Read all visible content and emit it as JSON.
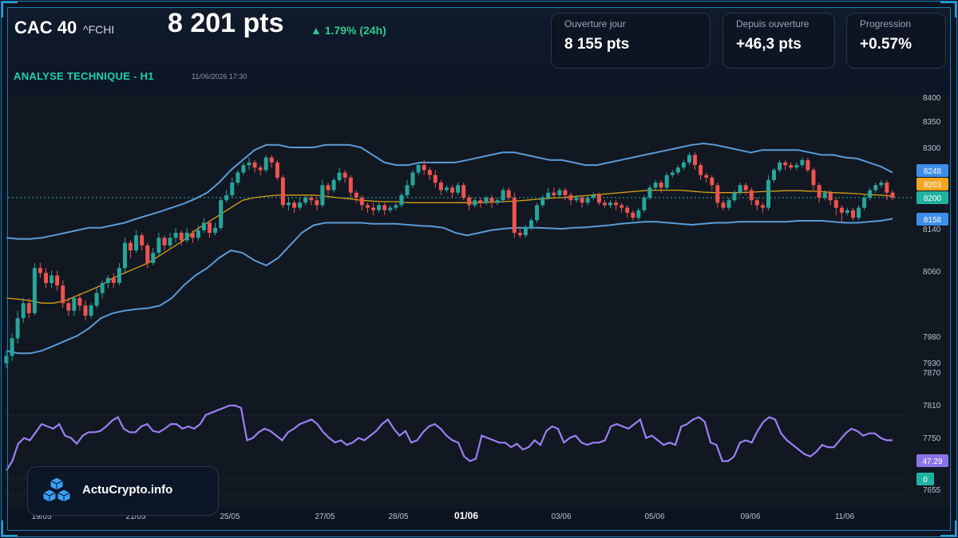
{
  "header": {
    "symbol": "CAC 40",
    "ticker": "^FCHI",
    "price": "8 201 pts",
    "change": "▲ 1.79% (24h)",
    "analysis_title": "ANALYSE TECHNIQUE - H1",
    "timestamp": "11/06/2026 17:30"
  },
  "stats": [
    {
      "label": "Ouverture jour",
      "value": "8 155 pts"
    },
    {
      "label": "Depuis ouverture",
      "value": "+46,3 pts"
    },
    {
      "label": "Progression",
      "value": "+0.57%"
    }
  ],
  "branding": {
    "name": "ActuCrypto.info"
  },
  "colors": {
    "up": "#26a69a",
    "down": "#ef5350",
    "bollinger": "#5b9bd5",
    "ma": "#d4a017",
    "rsi": "#9b7ff0",
    "price_badge": "#20b2a0",
    "upper_badge": "#3d8ee8",
    "ma_badge": "#f5a623",
    "rsi_badge": "#8b74e6",
    "zero_badge": "#20b2a0"
  },
  "chart_data": {
    "type": "candlestick",
    "price_axis": {
      "ticks": [
        "8400",
        "8350",
        "8300",
        "8140",
        "8060",
        "7980",
        "7930",
        "7870",
        "7810",
        "7750",
        "7655"
      ]
    },
    "x_ticks": [
      "19/05",
      "21/05",
      "25/05",
      "27/05",
      "28/05",
      "01/06",
      "03/06",
      "05/06",
      "09/06",
      "11/06"
    ],
    "bold_x_tick": "01/06",
    "badges": {
      "upper": "8248",
      "ma": "8203",
      "price": "8200",
      "lower": "8158",
      "rsi": "47.29",
      "zero": "0"
    },
    "candles": [
      [
        7870,
        7885,
        7860,
        7895
      ],
      [
        7885,
        7920,
        7875,
        7930
      ],
      [
        7920,
        7960,
        7910,
        7975
      ],
      [
        7960,
        7990,
        7950,
        8000
      ],
      [
        7990,
        7970,
        7960,
        8000
      ],
      [
        7970,
        8060,
        7965,
        8070
      ],
      [
        8060,
        8050,
        8040,
        8070
      ],
      [
        8050,
        8030,
        8020,
        8060
      ],
      [
        8030,
        8045,
        8020,
        8055
      ],
      [
        8045,
        8025,
        8015,
        8055
      ],
      [
        8025,
        7990,
        7980,
        8035
      ],
      [
        7990,
        7975,
        7965,
        8000
      ],
      [
        7975,
        8000,
        7965,
        8005
      ],
      [
        8000,
        7985,
        7975,
        8010
      ],
      [
        7985,
        7965,
        7955,
        7995
      ],
      [
        7965,
        7985,
        7960,
        7990
      ],
      [
        7985,
        8010,
        7980,
        8020
      ],
      [
        8010,
        8030,
        8000,
        8035
      ],
      [
        8030,
        8040,
        8020,
        8045
      ],
      [
        8040,
        8030,
        8020,
        8050
      ],
      [
        8030,
        8060,
        8025,
        8070
      ],
      [
        8060,
        8110,
        8050,
        8120
      ],
      [
        8110,
        8095,
        8080,
        8115
      ],
      [
        8095,
        8125,
        8090,
        8135
      ],
      [
        8125,
        8105,
        8095,
        8130
      ],
      [
        8105,
        8070,
        8060,
        8110
      ],
      [
        8070,
        8090,
        8065,
        8100
      ],
      [
        8090,
        8120,
        8085,
        8130
      ],
      [
        8120,
        8105,
        8095,
        8125
      ],
      [
        8105,
        8120,
        8100,
        8130
      ],
      [
        8120,
        8130,
        8110,
        8140
      ],
      [
        8130,
        8115,
        8105,
        8135
      ],
      [
        8115,
        8130,
        8110,
        8140
      ],
      [
        8130,
        8120,
        8110,
        8135
      ],
      [
        8120,
        8135,
        8115,
        8145
      ],
      [
        8135,
        8150,
        8130,
        8160
      ],
      [
        8150,
        8130,
        8120,
        8155
      ],
      [
        8130,
        8140,
        8125,
        8150
      ],
      [
        8140,
        8195,
        8135,
        8200
      ],
      [
        8195,
        8205,
        8190,
        8215
      ],
      [
        8205,
        8230,
        8200,
        8240
      ],
      [
        8230,
        8250,
        8225,
        8255
      ],
      [
        8250,
        8265,
        8245,
        8270
      ],
      [
        8265,
        8270,
        8255,
        8280
      ],
      [
        8270,
        8260,
        8250,
        8275
      ],
      [
        8260,
        8255,
        8245,
        8265
      ],
      [
        8255,
        8280,
        8250,
        8285
      ],
      [
        8280,
        8270,
        8260,
        8285
      ],
      [
        8270,
        8240,
        8235,
        8275
      ],
      [
        8240,
        8185,
        8180,
        8245
      ],
      [
        8185,
        8190,
        8175,
        8200
      ],
      [
        8190,
        8180,
        8170,
        8195
      ],
      [
        8180,
        8190,
        8175,
        8200
      ],
      [
        8190,
        8200,
        8185,
        8205
      ],
      [
        8200,
        8195,
        8185,
        8205
      ],
      [
        8195,
        8185,
        8175,
        8200
      ],
      [
        8185,
        8225,
        8180,
        8235
      ],
      [
        8225,
        8215,
        8205,
        8230
      ],
      [
        8215,
        8235,
        8210,
        8240
      ],
      [
        8235,
        8250,
        8230,
        8260
      ],
      [
        8250,
        8240,
        8230,
        8255
      ],
      [
        8240,
        8210,
        8200,
        8245
      ],
      [
        8210,
        8200,
        8190,
        8215
      ],
      [
        8200,
        8185,
        8175,
        8205
      ],
      [
        8185,
        8180,
        8170,
        8190
      ],
      [
        8180,
        8175,
        8165,
        8190
      ],
      [
        8175,
        8185,
        8170,
        8190
      ],
      [
        8185,
        8175,
        8165,
        8190
      ],
      [
        8175,
        8180,
        8170,
        8185
      ],
      [
        8180,
        8185,
        8175,
        8190
      ],
      [
        8185,
        8205,
        8180,
        8210
      ],
      [
        8205,
        8225,
        8200,
        8235
      ],
      [
        8225,
        8250,
        8220,
        8255
      ],
      [
        8250,
        8265,
        8245,
        8270
      ],
      [
        8265,
        8255,
        8245,
        8275
      ],
      [
        8255,
        8245,
        8235,
        8260
      ],
      [
        8245,
        8230,
        8220,
        8255
      ],
      [
        8230,
        8215,
        8205,
        8235
      ],
      [
        8215,
        8220,
        8210,
        8225
      ],
      [
        8220,
        8210,
        8200,
        8225
      ],
      [
        8210,
        8225,
        8205,
        8230
      ],
      [
        8225,
        8200,
        8195,
        8230
      ],
      [
        8200,
        8185,
        8175,
        8205
      ],
      [
        8185,
        8195,
        8180,
        8200
      ],
      [
        8195,
        8190,
        8180,
        8200
      ],
      [
        8190,
        8200,
        8185,
        8205
      ],
      [
        8200,
        8190,
        8180,
        8205
      ],
      [
        8190,
        8195,
        8185,
        8200
      ],
      [
        8195,
        8215,
        8190,
        8220
      ],
      [
        8215,
        8200,
        8195,
        8220
      ],
      [
        8200,
        8130,
        8120,
        8210
      ],
      [
        8130,
        8125,
        8120,
        8140
      ],
      [
        8125,
        8140,
        8120,
        8145
      ],
      [
        8140,
        8155,
        8135,
        8160
      ],
      [
        8155,
        8185,
        8150,
        8190
      ],
      [
        8185,
        8200,
        8180,
        8205
      ],
      [
        8200,
        8210,
        8195,
        8220
      ],
      [
        8210,
        8205,
        8200,
        8220
      ],
      [
        8205,
        8215,
        8200,
        8220
      ],
      [
        8215,
        8205,
        8195,
        8220
      ],
      [
        8205,
        8195,
        8185,
        8210
      ],
      [
        8195,
        8200,
        8190,
        8205
      ],
      [
        8200,
        8190,
        8180,
        8205
      ],
      [
        8190,
        8200,
        8185,
        8205
      ],
      [
        8200,
        8205,
        8195,
        8210
      ],
      [
        8205,
        8190,
        8185,
        8210
      ],
      [
        8190,
        8185,
        8180,
        8195
      ],
      [
        8185,
        8190,
        8180,
        8195
      ],
      [
        8190,
        8185,
        8175,
        8195
      ],
      [
        8185,
        8180,
        8170,
        8190
      ],
      [
        8180,
        8170,
        8160,
        8185
      ],
      [
        8170,
        8160,
        8155,
        8175
      ],
      [
        8160,
        8175,
        8155,
        8180
      ],
      [
        8175,
        8200,
        8170,
        8205
      ],
      [
        8200,
        8220,
        8195,
        8225
      ],
      [
        8220,
        8230,
        8215,
        8235
      ],
      [
        8230,
        8220,
        8210,
        8235
      ],
      [
        8220,
        8245,
        8215,
        8250
      ],
      [
        8245,
        8250,
        8240,
        8255
      ],
      [
        8250,
        8260,
        8245,
        8265
      ],
      [
        8260,
        8270,
        8255,
        8275
      ],
      [
        8270,
        8285,
        8265,
        8290
      ],
      [
        8285,
        8265,
        8255,
        8290
      ],
      [
        8265,
        8245,
        8235,
        8270
      ],
      [
        8245,
        8240,
        8230,
        8250
      ],
      [
        8240,
        8225,
        8215,
        8245
      ],
      [
        8225,
        8190,
        8180,
        8230
      ],
      [
        8190,
        8180,
        8175,
        8195
      ],
      [
        8180,
        8195,
        8175,
        8200
      ],
      [
        8195,
        8210,
        8190,
        8215
      ],
      [
        8210,
        8225,
        8205,
        8230
      ],
      [
        8225,
        8215,
        8205,
        8230
      ],
      [
        8215,
        8195,
        8185,
        8220
      ],
      [
        8195,
        8185,
        8175,
        8200
      ],
      [
        8185,
        8180,
        8170,
        8190
      ],
      [
        8180,
        8235,
        8175,
        8245
      ],
      [
        8235,
        8255,
        8230,
        8260
      ],
      [
        8255,
        8270,
        8250,
        8275
      ],
      [
        8270,
        8265,
        8255,
        8275
      ],
      [
        8265,
        8260,
        8255,
        8270
      ],
      [
        8260,
        8265,
        8255,
        8270
      ],
      [
        8265,
        8275,
        8260,
        8280
      ],
      [
        8275,
        8255,
        8250,
        8280
      ],
      [
        8255,
        8225,
        8215,
        8260
      ],
      [
        8225,
        8200,
        8190,
        8230
      ],
      [
        8200,
        8210,
        8195,
        8215
      ],
      [
        8210,
        8195,
        8185,
        8215
      ],
      [
        8195,
        8180,
        8165,
        8200
      ],
      [
        8180,
        8170,
        8150,
        8185
      ],
      [
        8170,
        8175,
        8165,
        8180
      ],
      [
        8175,
        8160,
        8155,
        8180
      ],
      [
        8160,
        8180,
        8155,
        8185
      ],
      [
        8180,
        8200,
        8175,
        8205
      ],
      [
        8200,
        8215,
        8195,
        8220
      ],
      [
        8215,
        8225,
        8210,
        8230
      ],
      [
        8225,
        8230,
        8220,
        8235
      ],
      [
        8230,
        8210,
        8195,
        8235
      ],
      [
        8210,
        8200,
        8195,
        8215
      ]
    ],
    "bollinger_upper": [
      8120,
      8118,
      8118,
      8120,
      8125,
      8130,
      8135,
      8140,
      8140,
      8145,
      8150,
      8158,
      8165,
      8172,
      8180,
      8188,
      8198,
      8210,
      8230,
      8255,
      8275,
      8295,
      8305,
      8305,
      8300,
      8300,
      8300,
      8305,
      8305,
      8305,
      8300,
      8285,
      8270,
      8265,
      8265,
      8270,
      8270,
      8270,
      8270,
      8275,
      8280,
      8285,
      8290,
      8290,
      8285,
      8280,
      8275,
      8275,
      8270,
      8265,
      8265,
      8270,
      8275,
      8280,
      8285,
      8290,
      8295,
      8300,
      8305,
      8308,
      8305,
      8300,
      8295,
      8290,
      8295,
      8295,
      8295,
      8295,
      8290,
      8285,
      8285,
      8280,
      8278,
      8270,
      8262,
      8250
    ],
    "bollinger_lower": [
      7895,
      7890,
      7890,
      7895,
      7905,
      7915,
      7925,
      7940,
      7960,
      7970,
      7975,
      7978,
      7980,
      7985,
      8000,
      8025,
      8045,
      8060,
      8080,
      8095,
      8090,
      8075,
      8065,
      8080,
      8105,
      8130,
      8145,
      8150,
      8150,
      8150,
      8150,
      8148,
      8148,
      8148,
      8146,
      8144,
      8143,
      8140,
      8130,
      8125,
      8130,
      8135,
      8138,
      8140,
      8140,
      8140,
      8139,
      8138,
      8140,
      8141,
      8143,
      8145,
      8148,
      8150,
      8152,
      8152,
      8150,
      8148,
      8146,
      8148,
      8150,
      8150,
      8152,
      8152,
      8152,
      8152,
      8152,
      8154,
      8154,
      8154,
      8152,
      8150,
      8150,
      8152,
      8154,
      8158
    ],
    "ma": [
      8000,
      7998,
      7995,
      7990,
      7990,
      7995,
      8005,
      8015,
      8025,
      8040,
      8050,
      8060,
      8070,
      8085,
      8100,
      8115,
      8135,
      8150,
      8165,
      8180,
      8195,
      8200,
      8203,
      8205,
      8205,
      8205,
      8205,
      8203,
      8200,
      8198,
      8195,
      8193,
      8192,
      8192,
      8190,
      8190,
      8190,
      8190,
      8190,
      8190,
      8190,
      8191,
      8192,
      8193,
      8195,
      8197,
      8199,
      8200,
      8202,
      8204,
      8206,
      8208,
      8210,
      8212,
      8214,
      8215,
      8215,
      8215,
      8213,
      8211,
      8210,
      8210,
      8210,
      8211,
      8212,
      8213,
      8214,
      8214,
      8213,
      8212,
      8210,
      8209,
      8208,
      8206,
      8205,
      8203
    ],
    "rsi": [
      22,
      30,
      45,
      50,
      48,
      55,
      62,
      60,
      58,
      62,
      52,
      50,
      45,
      52,
      55,
      55,
      56,
      60,
      65,
      68,
      58,
      55,
      55,
      60,
      62,
      56,
      55,
      58,
      62,
      62,
      58,
      60,
      58,
      62,
      70,
      72,
      74,
      76,
      78,
      78,
      76,
      48,
      50,
      55,
      58,
      56,
      52,
      48,
      55,
      58,
      62,
      64,
      66,
      62,
      55,
      50,
      46,
      48,
      44,
      46,
      50,
      48,
      52,
      56,
      62,
      66,
      58,
      52,
      56,
      46,
      48,
      55,
      60,
      62,
      58,
      52,
      48,
      46,
      34,
      30,
      32,
      52,
      50,
      48,
      46,
      46,
      42,
      45,
      40,
      42,
      48,
      44,
      56,
      60,
      58,
      46,
      50,
      52,
      46,
      44,
      46,
      46,
      48,
      60,
      62,
      60,
      58,
      62,
      66,
      50,
      52,
      48,
      44,
      46,
      44,
      60,
      62,
      66,
      68,
      64,
      46,
      44,
      30,
      30,
      34,
      46,
      48,
      46,
      56,
      64,
      68,
      66,
      54,
      48,
      44,
      40,
      36,
      34,
      38,
      44,
      42,
      42,
      48,
      54,
      58,
      56,
      52,
      54,
      54,
      50,
      48,
      48
    ],
    "rsi_last": "47.29"
  }
}
